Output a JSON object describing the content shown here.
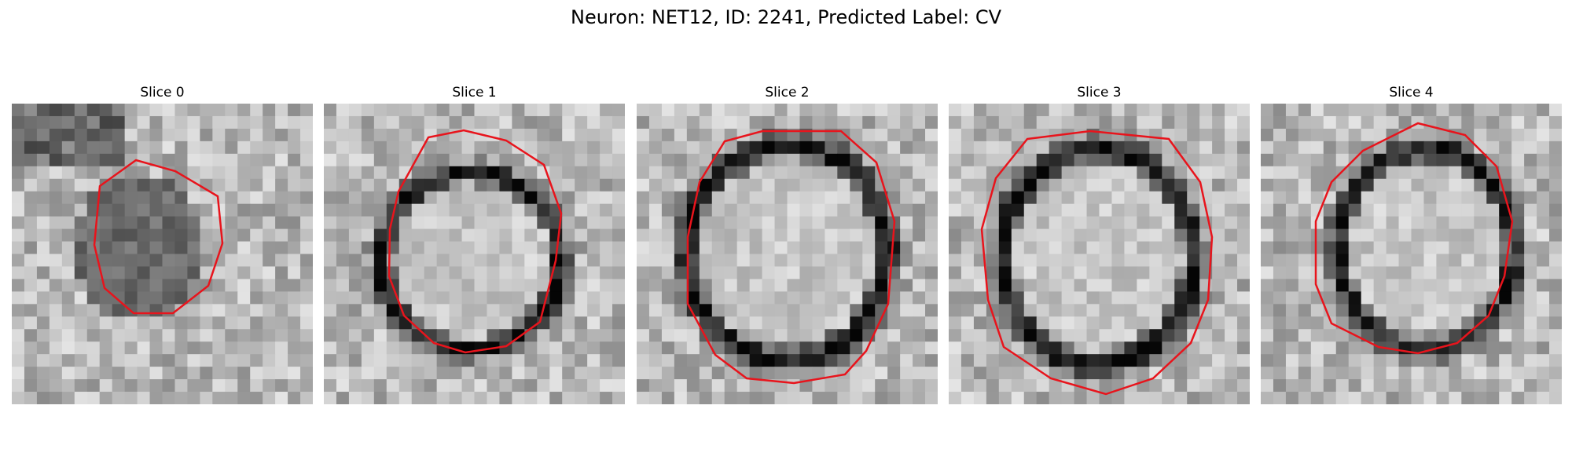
{
  "figure": {
    "title": "Neuron: NET12, ID: 2241, Predicted Label: CV"
  },
  "panels": [
    {
      "title": "Slice 0",
      "contour_color": "#e8141c",
      "seed": 11,
      "darkness": 0.55
    },
    {
      "title": "Slice 1",
      "contour_color": "#e8141c",
      "seed": 23,
      "darkness": 0.35
    },
    {
      "title": "Slice 2",
      "contour_color": "#e8141c",
      "seed": 37,
      "darkness": 0.3
    },
    {
      "title": "Slice 3",
      "contour_color": "#e8141c",
      "seed": 41,
      "darkness": 0.3
    },
    {
      "title": "Slice 4",
      "contour_color": "#e8141c",
      "seed": 53,
      "darkness": 0.35
    }
  ]
}
